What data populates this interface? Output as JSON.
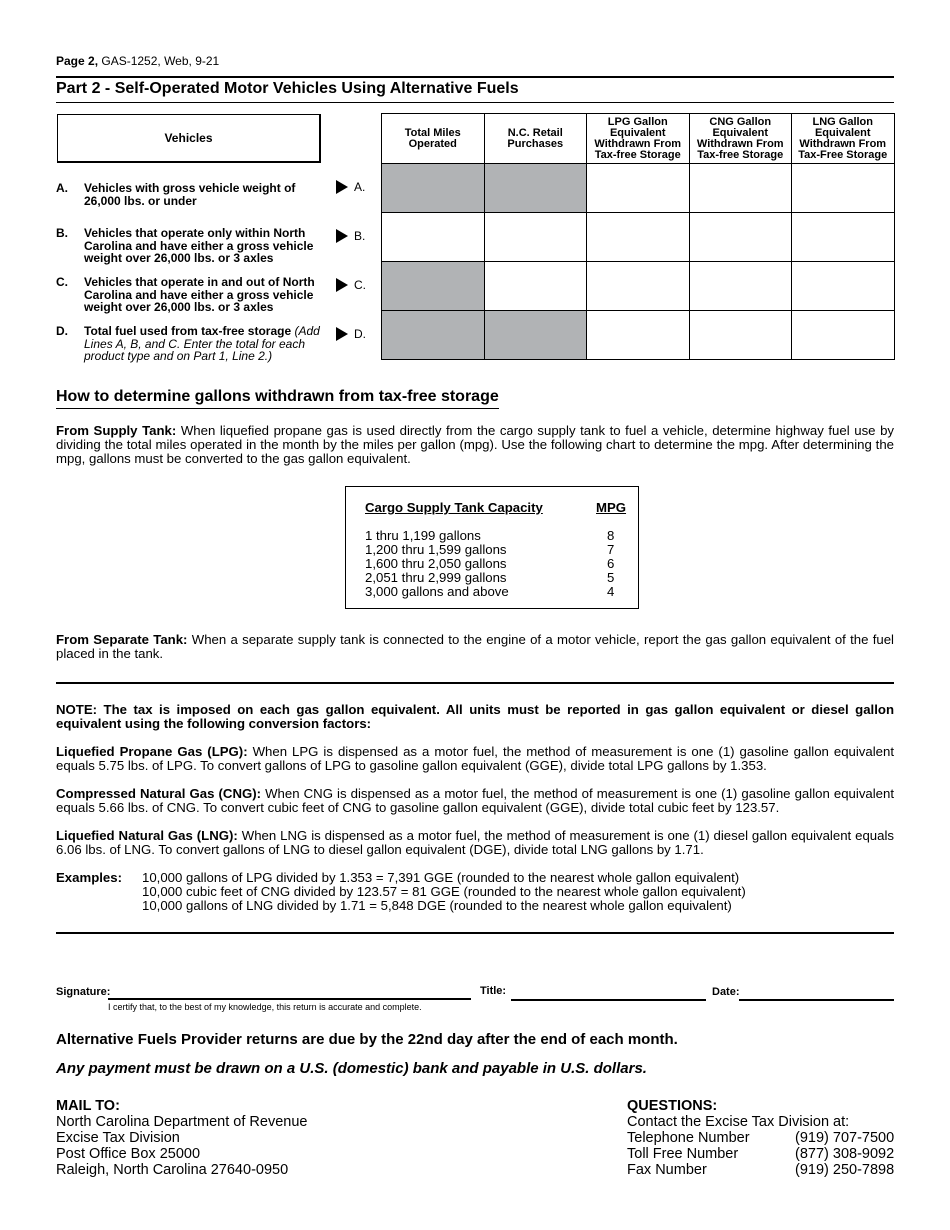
{
  "header": {
    "page": "Page 2,",
    "form": " GAS-1252, Web, 9-21"
  },
  "part2": {
    "title": "Part 2 - Self-Operated Motor Vehicles Using Alternative Fuels",
    "vehicles_header": "Vehicles",
    "columns": [
      "Total Miles Operated",
      "N.C. Retail Purchases",
      "LPG Gallon Equivalent Withdrawn From Tax-free Storage",
      "CNG Gallon Equivalent Withdrawn From Tax-free Storage",
      "LNG Gallon Equivalent Withdrawn From Tax-Free Storage"
    ],
    "lines": [
      {
        "letter": "A.",
        "text": "Vehicles with gross vehicle weight of 26,000 lbs. or under",
        "note": "",
        "marker": "A.",
        "shaded": [
          true,
          true,
          false,
          false,
          false
        ]
      },
      {
        "letter": "B.",
        "text": "Vehicles that operate only within North Carolina and have either a gross vehicle weight over 26,000 lbs. or 3 axles",
        "note": "",
        "marker": "B.",
        "shaded": [
          false,
          false,
          false,
          false,
          false
        ]
      },
      {
        "letter": "C.",
        "text": "Vehicles that operate in and out of North Carolina and have either a gross vehicle weight over 26,000 lbs. or 3 axles",
        "note": "",
        "marker": "C.",
        "shaded": [
          true,
          false,
          false,
          false,
          false
        ]
      },
      {
        "letter": "D.",
        "text": "Total fuel used from tax-free storage",
        "note": "(Add Lines A, B, and C. Enter the total for each product type and on Part 1, Line 2.)",
        "marker": "D.",
        "shaded": [
          true,
          true,
          false,
          false,
          false
        ]
      }
    ],
    "shade_color": "#b1b3b5"
  },
  "howto": {
    "title": "How to determine gallons withdrawn from tax-free storage",
    "supply_label": "From Supply Tank:",
    "supply_text": " When liquefied propane gas is used directly from the cargo supply tank to fuel a vehicle, determine highway fuel use by dividing the total miles operated in the month by the miles per gallon (mpg). Use the following chart to determine the mpg. After determining the mpg, gallons must be converted to the gas gallon equivalent.",
    "chart": {
      "col1": "Cargo Supply Tank Capacity",
      "col2": "MPG",
      "rows": [
        [
          "1 thru 1,199 gallons",
          "8"
        ],
        [
          "1,200 thru 1,599 gallons",
          "7"
        ],
        [
          "1,600 thru 2,050 gallons",
          "6"
        ],
        [
          "2,051 thru 2,999 gallons",
          "5"
        ],
        [
          "3,000 gallons and above",
          "4"
        ]
      ]
    },
    "separate_label": "From Separate Tank:",
    "separate_text": "  When a separate supply tank is connected to the engine of a motor vehicle, report the gas gallon equivalent of the fuel placed in the tank."
  },
  "note": {
    "text": "NOTE: The tax is imposed on each gas gallon equivalent. All units must be reported in gas gallon equivalent or diesel gallon equivalent using the following conversion factors:",
    "lpg_label": "Liquefied Propane Gas (LPG):",
    "lpg_text": " When LPG is dispensed as a motor fuel, the method of measurement is one (1) gasoline gallon equivalent equals 5.75 lbs. of LPG. To convert gallons of LPG to gasoline gallon equivalent (GGE), divide total LPG gallons by 1.353.",
    "cng_label": "Compressed Natural Gas (CNG):",
    "cng_text": " When CNG is dispensed as a motor fuel, the method of measurement is one (1) gasoline gallon equivalent equals 5.66 lbs. of CNG. To convert cubic feet of CNG to gasoline gallon equivalent (GGE), divide total cubic feet by 123.57.",
    "lng_label": "Liquefied Natural Gas (LNG):",
    "lng_text": " When LNG is dispensed as a motor fuel, the method of measurement is one (1) diesel gallon equivalent equals 6.06 lbs. of LNG. To convert gallons of LNG to diesel gallon equivalent (DGE), divide total LNG gallons by 1.71.",
    "examples_label": "Examples:",
    "examples": [
      "10,000 gallons of LPG divided by 1.353 = 7,391 GGE (rounded to the nearest whole gallon equivalent)",
      "10,000 cubic feet of CNG divided by 123.57 = 81 GGE (rounded to the nearest whole gallon equivalent)",
      "10,000 gallons of LNG divided by 1.71 = 5,848 DGE (rounded to the nearest whole gallon equivalent)"
    ]
  },
  "signature": {
    "sig_label": "Signature:",
    "title_label": "Title:",
    "date_label": "Date:",
    "certify": "I certify that, to the best of my knowledge, this return is accurate and complete."
  },
  "due": "Alternative Fuels Provider returns are due by the 22nd day after the end of each month.",
  "payment": "Any payment must be drawn on a U.S. (domestic) bank and payable in U.S. dollars.",
  "mail": {
    "title": "MAIL TO:",
    "lines": [
      "North Carolina Department of Revenue",
      "Excise Tax Division",
      "Post Office Box 25000",
      "Raleigh, North Carolina 27640-0950"
    ]
  },
  "questions": {
    "title": "QUESTIONS:",
    "intro": "Contact the Excise Tax Division at:",
    "rows": [
      [
        "Telephone Number",
        "(919) 707-7500"
      ],
      [
        "Toll Free Number",
        "(877) 308-9092"
      ],
      [
        "Fax Number",
        "(919) 250-7898"
      ]
    ]
  }
}
